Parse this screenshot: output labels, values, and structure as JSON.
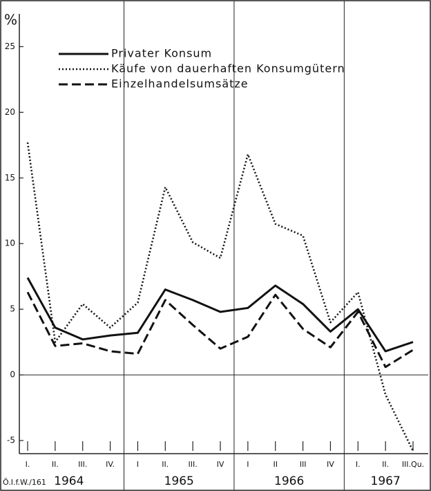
{
  "chart_data": {
    "type": "line",
    "y_label": "%",
    "source": "Ö.I.f.W./161",
    "groups": [
      {
        "label": "1964",
        "categories": [
          "I.",
          "II.",
          "III.",
          "IV."
        ]
      },
      {
        "label": "1965",
        "categories": [
          "I",
          "II.",
          "III.",
          "IV"
        ]
      },
      {
        "label": "1966",
        "categories": [
          "I",
          "II",
          "III",
          "IV"
        ]
      },
      {
        "label": "1967",
        "categories": [
          "I.",
          "II.",
          "III.Qu."
        ]
      }
    ],
    "series": [
      {
        "name": "Privater Konsum",
        "color": "#111111",
        "style": "solid",
        "values": [
          7.4,
          3.6,
          2.7,
          3.0,
          3.2,
          6.5,
          5.7,
          4.8,
          5.1,
          6.8,
          5.4,
          3.3,
          5.0,
          1.8,
          2.5
        ]
      },
      {
        "name": "Käufe von dauerhaften Konsumgütern",
        "color": "#111111",
        "style": "dotted",
        "values": [
          17.7,
          2.5,
          5.4,
          3.6,
          5.5,
          14.3,
          10.1,
          8.9,
          16.8,
          11.5,
          10.6,
          4.0,
          6.3,
          -1.5,
          -5.8
        ]
      },
      {
        "name": "Einzelhandelsumsätze",
        "color": "#111111",
        "style": "dashed",
        "values": [
          6.3,
          2.2,
          2.4,
          1.8,
          1.6,
          5.7,
          3.8,
          2.0,
          2.9,
          6.1,
          3.5,
          2.1,
          4.8,
          0.6,
          1.9
        ]
      }
    ],
    "ylim": [
      -6,
      27.5
    ],
    "yticks": [
      -5,
      0,
      5,
      10,
      15,
      20,
      25
    ],
    "legend": "upper left"
  }
}
